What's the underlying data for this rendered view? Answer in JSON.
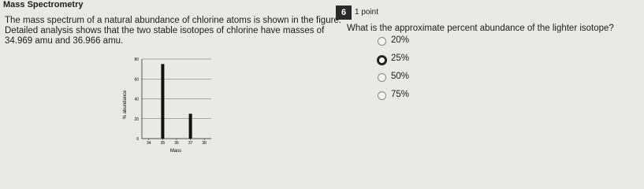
{
  "header": {
    "title": "Mass Spectrometry"
  },
  "question": {
    "number": "6",
    "points": "1 point",
    "stem_lines": [
      "The mass spectrum of a natural abundance of chlorine atoms is shown in the figure.",
      "Detailed analysis shows that the two stable isotopes of chlorine have masses of",
      "34.969 amu and 36.966 amu."
    ],
    "prompt": "What is the approximate percent abundance of the lighter isotope?",
    "options": [
      "20%",
      "25%",
      "50%",
      "75%"
    ],
    "selected_option": 1
  },
  "figure": {
    "type": "bar",
    "x_label": "Mass",
    "y_label": "% abundance",
    "x": [
      35,
      37
    ],
    "values": [
      75,
      25
    ],
    "color": "#111111",
    "xlim": [
      33.5,
      38.5
    ],
    "xticks": [
      34,
      35,
      36,
      37,
      38
    ],
    "ylim": [
      0,
      80
    ],
    "yticks": [
      0,
      20,
      40,
      60,
      80
    ],
    "grid": true
  }
}
